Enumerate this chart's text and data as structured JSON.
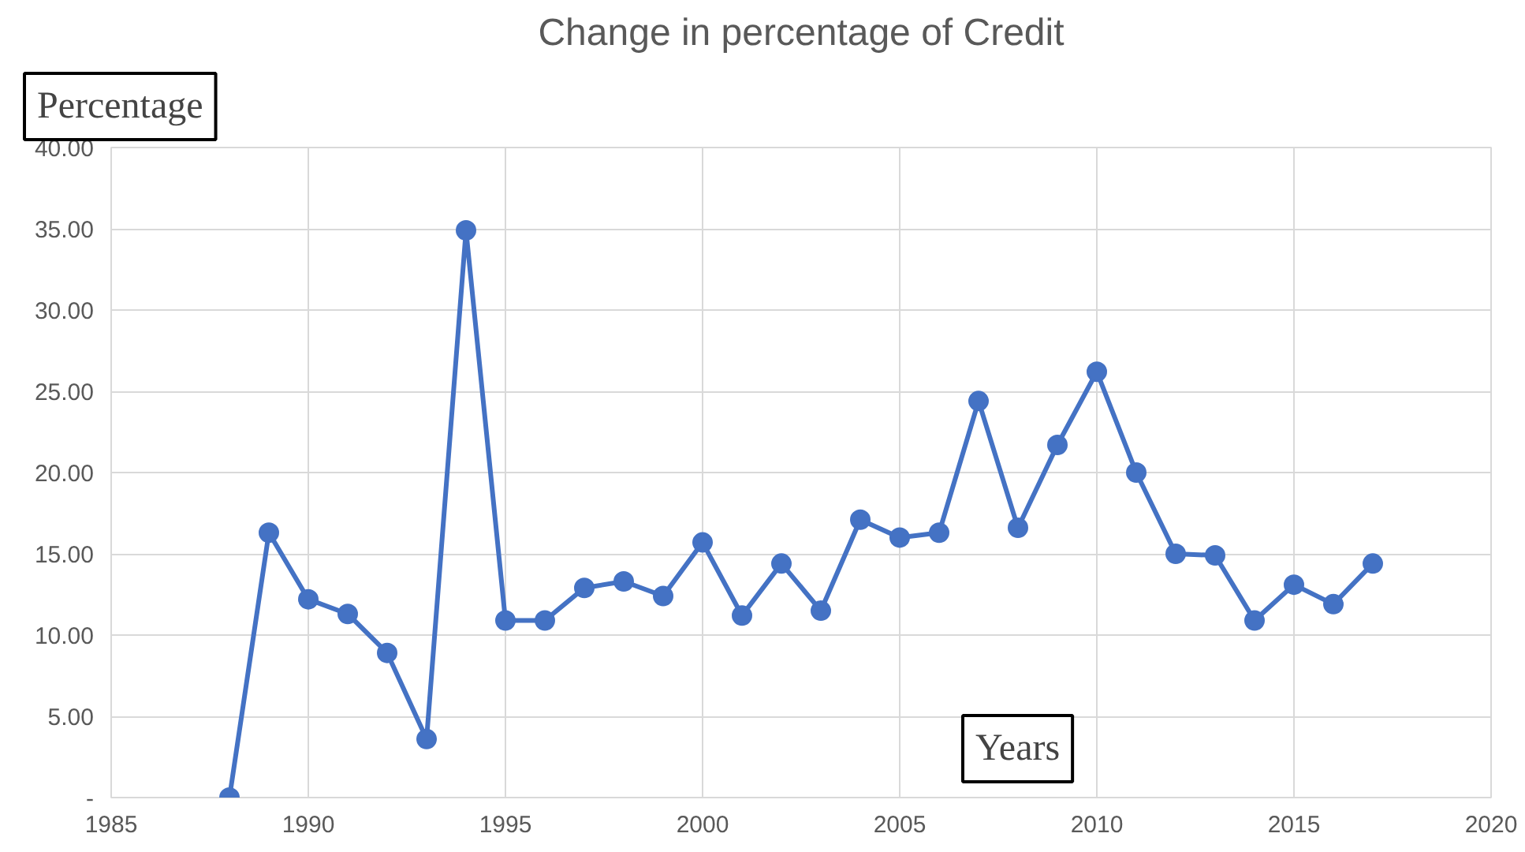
{
  "chart_data": {
    "type": "line",
    "title": "Change in percentage of Credit",
    "xlabel": "Years",
    "ylabel": "Percentage",
    "x": [
      1988,
      1989,
      1990,
      1991,
      1992,
      1993,
      1994,
      1995,
      1996,
      1997,
      1998,
      1999,
      2000,
      2001,
      2002,
      2003,
      2004,
      2005,
      2006,
      2007,
      2008,
      2009,
      2010,
      2011,
      2012,
      2013,
      2014,
      2015,
      2016,
      2017
    ],
    "series": [
      {
        "color": "#4472c4",
        "values": [
          0,
          16.3,
          12.2,
          11.3,
          8.9,
          3.6,
          34.9,
          10.9,
          10.9,
          12.9,
          13.3,
          12.4,
          15.7,
          11.2,
          14.4,
          11.5,
          17.1,
          16.0,
          16.3,
          24.4,
          16.6,
          21.7,
          26.2,
          20.0,
          15.0,
          14.9,
          10.9,
          13.1,
          11.9,
          14.4
        ]
      }
    ],
    "xlim": [
      1985,
      2020
    ],
    "xticks": [
      1985,
      1990,
      1995,
      2000,
      2005,
      2010,
      2015,
      2020
    ],
    "ylim": [
      0,
      40
    ],
    "yticks": [
      {
        "value": 0,
        "label": "-"
      },
      {
        "value": 5,
        "label": "5.00"
      },
      {
        "value": 10,
        "label": "10.00"
      },
      {
        "value": 15,
        "label": "15.00"
      },
      {
        "value": 20,
        "label": "20.00"
      },
      {
        "value": 25,
        "label": "25.00"
      },
      {
        "value": 30,
        "label": "30.00"
      },
      {
        "value": 35,
        "label": "35.00"
      },
      {
        "value": 40,
        "label": "40.00"
      }
    ],
    "grid": true,
    "marker": "circle",
    "line_style": "solid"
  }
}
